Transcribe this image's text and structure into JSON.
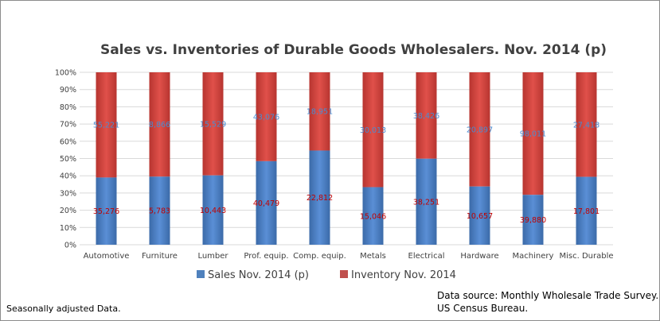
{
  "chart_data": {
    "type": "bar",
    "stacked_percent": true,
    "title": "Sales vs. Inventories of Durable Goods Wholesalers. Nov. 2014 (p)",
    "categories": [
      "Automotive",
      "Furniture",
      "Lumber",
      "Prof. equip.",
      "Comp. equip.",
      "Metals",
      "Electrical",
      "Hardware",
      "Machinery",
      "Misc. Durable"
    ],
    "series": [
      {
        "name": "Sales Nov. 2014 (p)",
        "values": [
          35276,
          5783,
          10443,
          40479,
          22812,
          15046,
          38251,
          10657,
          39880,
          17801
        ],
        "labels": [
          "35,276",
          "5,783",
          "10,443",
          "40,479",
          "22,812",
          "15,046",
          "38,251",
          "10,657",
          "39,880",
          "17,801"
        ],
        "color": "#4f81bd"
      },
      {
        "name": "Inventory Nov. 2014",
        "values": [
          55221,
          8866,
          15529,
          43076,
          18951,
          30013,
          38426,
          20897,
          98011,
          27418
        ],
        "labels": [
          "55,221",
          "8,866",
          "15,529",
          "43,076",
          "18,951",
          "30,013",
          "38,426",
          "20,897",
          "98,011",
          "27,418"
        ],
        "color": "#c0504d"
      }
    ],
    "yticks": [
      "0%",
      "10%",
      "20%",
      "30%",
      "40%",
      "50%",
      "60%",
      "70%",
      "80%",
      "90%",
      "100%"
    ],
    "ylim": [
      0,
      100
    ],
    "grid": true,
    "legend_position": "bottom"
  },
  "notes": {
    "left": "Seasonally adjusted Data.",
    "source_line1": "Data source: Monthly Wholesale Trade Survey.",
    "source_line2": "US Census Bureau."
  }
}
